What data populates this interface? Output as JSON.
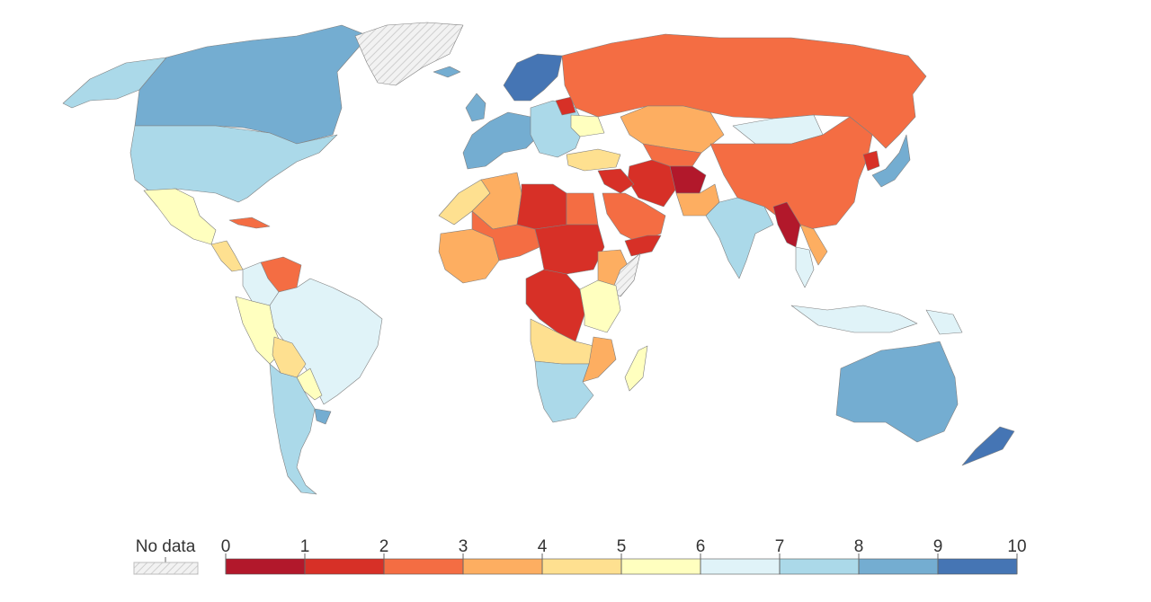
{
  "legend": {
    "no_data_label": "No data",
    "tick_labels": [
      "0",
      "1",
      "2",
      "3",
      "4",
      "5",
      "6",
      "7",
      "8",
      "9",
      "10"
    ],
    "bins": [
      {
        "range": "0-1",
        "color": "#b2182b"
      },
      {
        "range": "1-2",
        "color": "#d73027"
      },
      {
        "range": "2-3",
        "color": "#f46d43"
      },
      {
        "range": "3-4",
        "color": "#fdae61"
      },
      {
        "range": "4-5",
        "color": "#fee090"
      },
      {
        "range": "5-6",
        "color": "#ffffbf"
      },
      {
        "range": "6-7",
        "color": "#e0f3f8"
      },
      {
        "range": "7-8",
        "color": "#abd9e9"
      },
      {
        "range": "8-9",
        "color": "#74add1"
      },
      {
        "range": "9-10",
        "color": "#4575b4"
      }
    ],
    "no_data_color": "hatched-light-grey"
  },
  "regions": {
    "canada": {
      "bin": "8-9"
    },
    "alaska": {
      "bin": "7-8"
    },
    "greenland": {
      "bin": "no-data"
    },
    "usa": {
      "bin": "7-8"
    },
    "mexico": {
      "bin": "5-6"
    },
    "central_america": {
      "bin": "4-5"
    },
    "cuba": {
      "bin": "2-3"
    },
    "venezuela": {
      "bin": "2-3"
    },
    "colombia": {
      "bin": "6-7"
    },
    "brazil": {
      "bin": "6-7"
    },
    "peru_ecuador": {
      "bin": "5-6"
    },
    "bolivia": {
      "bin": "4-5"
    },
    "paraguay": {
      "bin": "5-6"
    },
    "argentina_chile": {
      "bin": "7-8"
    },
    "uruguay": {
      "bin": "8-9"
    },
    "iceland": {
      "bin": "8-9"
    },
    "ireland_uk": {
      "bin": "8-9"
    },
    "scandinavia": {
      "bin": "9-10"
    },
    "western_europe": {
      "bin": "8-9"
    },
    "central_eastern_europe": {
      "bin": "7-8"
    },
    "belarus": {
      "bin": "1-2"
    },
    "ukraine": {
      "bin": "5-6"
    },
    "turkey": {
      "bin": "4-5"
    },
    "russia": {
      "bin": "2-3"
    },
    "kazakhstan": {
      "bin": "3-4"
    },
    "mongolia": {
      "bin": "6-7"
    },
    "china": {
      "bin": "2-3"
    },
    "korea_japan": {
      "bin": "8-9"
    },
    "north_korea": {
      "bin": "1-2"
    },
    "central_asia": {
      "bin": "2-3"
    },
    "iran": {
      "bin": "1-2"
    },
    "afghanistan": {
      "bin": "0-1"
    },
    "pakistan": {
      "bin": "3-4"
    },
    "india": {
      "bin": "7-8"
    },
    "myanmar": {
      "bin": "0-1"
    },
    "southeast_asia": {
      "bin": "6-7"
    },
    "vietnam_laos": {
      "bin": "3-4"
    },
    "indonesia": {
      "bin": "6-7"
    },
    "png": {
      "bin": "6-7"
    },
    "australia": {
      "bin": "8-9"
    },
    "new_zealand": {
      "bin": "9-10"
    },
    "saudi_arabia": {
      "bin": "2-3"
    },
    "yemen": {
      "bin": "1-2"
    },
    "syria_iraq": {
      "bin": "1-2"
    },
    "morocco": {
      "bin": "4-5"
    },
    "algeria": {
      "bin": "3-4"
    },
    "libya": {
      "bin": "1-2"
    },
    "egypt": {
      "bin": "2-3"
    },
    "west_africa": {
      "bin": "3-4"
    },
    "sahel": {
      "bin": "2-3"
    },
    "sudan_chad": {
      "bin": "1-2"
    },
    "ethiopia": {
      "bin": "3-4"
    },
    "somalia": {
      "bin": "no-data"
    },
    "drc": {
      "bin": "1-2"
    },
    "east_africa": {
      "bin": "5-6"
    },
    "angola_zambia": {
      "bin": "4-5"
    },
    "southern_africa": {
      "bin": "7-8"
    },
    "mozambique": {
      "bin": "3-4"
    },
    "madagascar": {
      "bin": "5-6"
    }
  }
}
